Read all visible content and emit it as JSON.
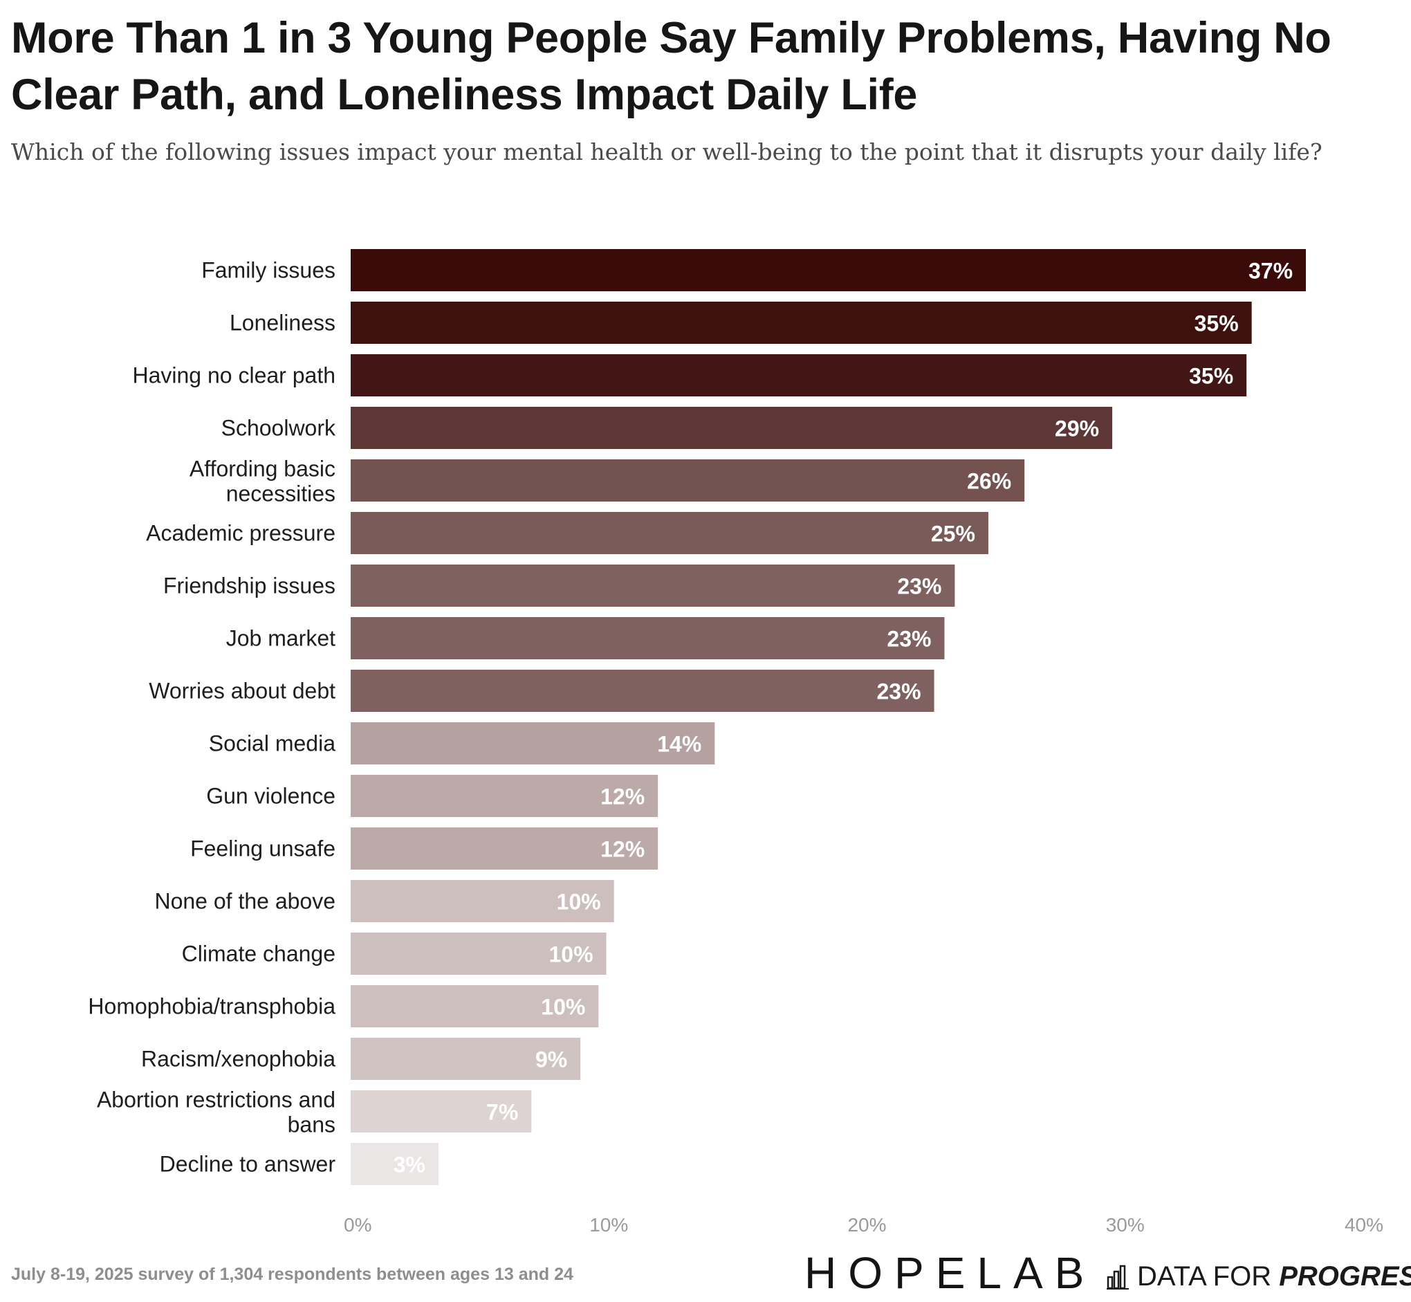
{
  "header": {
    "title": "More Than 1 in 3 Young People Say Family Problems, Having No Clear Path, and Loneliness Impact Daily Life",
    "subtitle": "Which of the following issues impact your mental health or well-being to the point that it disrupts your daily life?"
  },
  "chart_data": {
    "type": "bar",
    "orientation": "horizontal",
    "title": "More Than 1 in 3 Young People Say Family Problems, Having No Clear Path, and Loneliness Impact Daily Life",
    "subtitle": "Which of the following issues impact your mental health or well-being to the point that it disrupts your daily life?",
    "categories": [
      "Family issues",
      "Loneliness",
      "Having no clear path",
      "Schoolwork",
      "Affording basic necessities",
      "Academic pressure",
      "Friendship issues",
      "Job market",
      "Worries about debt",
      "Social media",
      "Gun violence",
      "Feeling unsafe",
      "None of the above",
      "Climate change",
      "Homophobia/transphobia",
      "Racism/xenophobia",
      "Abortion restrictions and bans",
      "Decline to answer"
    ],
    "values": [
      37,
      35,
      35,
      29,
      26,
      25,
      23,
      23,
      23,
      14,
      12,
      12,
      10,
      10,
      10,
      9,
      7,
      3
    ],
    "bar_lengths": [
      37.0,
      34.9,
      34.7,
      29.5,
      26.1,
      24.7,
      23.4,
      23.0,
      22.6,
      14.1,
      11.9,
      11.9,
      10.2,
      9.9,
      9.6,
      8.9,
      7.0,
      3.4
    ],
    "value_labels": [
      "37%",
      "35%",
      "35%",
      "29%",
      "26%",
      "25%",
      "23%",
      "23%",
      "23%",
      "14%",
      "12%",
      "12%",
      "10%",
      "10%",
      "10%",
      "9%",
      "7%",
      "3%"
    ],
    "colors": [
      "#3a0b09",
      "#3e110f",
      "#411614",
      "#5c3735",
      "#74524f",
      "#7a5a57",
      "#7f6260",
      "#7f6260",
      "#7f6260",
      "#b4a1a0",
      "#bcaaa9",
      "#bcaaa9",
      "#cdbfbe",
      "#cdbfbe",
      "#cdbfbe",
      "#d0c4c3",
      "#dcd3d2",
      "#ebe6e6"
    ],
    "x_ticks": [
      0,
      10,
      20,
      30,
      40
    ],
    "x_tick_labels": [
      "0%",
      "10%",
      "20%",
      "30%",
      "40%"
    ],
    "xlim": [
      0,
      40
    ],
    "xlabel": "",
    "ylabel": "",
    "grid": false,
    "legend": "none"
  },
  "footer": {
    "source": "July 8-19, 2025 survey of 1,304 respondents between ages 13 and 24",
    "logo_hopelab": "HOPELAB",
    "logo_dfp_regular": "DATA FOR ",
    "logo_dfp_bold": "PROGRESS"
  }
}
